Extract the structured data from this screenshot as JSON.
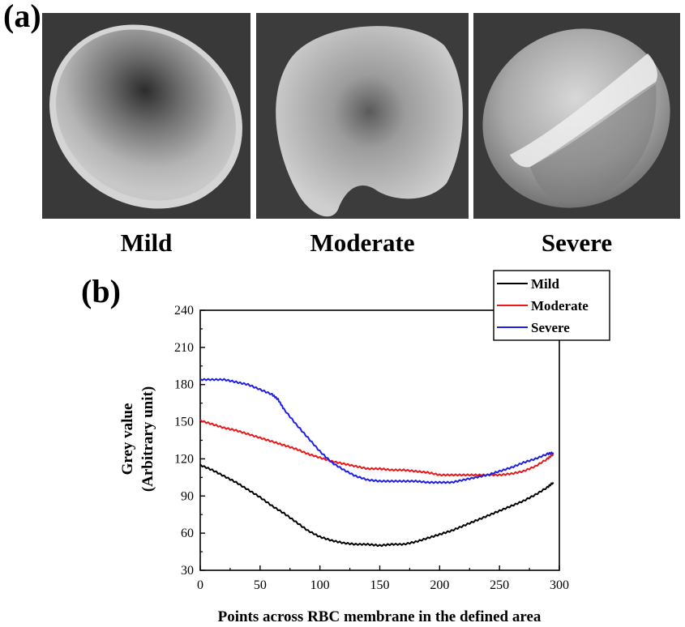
{
  "panel_a": {
    "label": "(a)",
    "images": [
      {
        "caption": "Mild",
        "description": "mild-rbc-sem-image"
      },
      {
        "caption": "Moderate",
        "description": "moderate-rbc-sem-image"
      },
      {
        "caption": "Severe",
        "description": "severe-rbc-sem-image"
      }
    ]
  },
  "panel_b": {
    "label": "(b)"
  },
  "chart_data": {
    "type": "line",
    "title": "",
    "xlabel": "Points across RBC membrane in the defined area",
    "ylabel_line1": "Grey value",
    "ylabel_line2": "(Arbitrary unit)",
    "xlim": [
      0,
      300
    ],
    "ylim": [
      30,
      240
    ],
    "xticks": [
      0,
      50,
      100,
      150,
      200,
      250,
      300
    ],
    "yticks": [
      30,
      60,
      90,
      120,
      150,
      180,
      210,
      240
    ],
    "grid": false,
    "legend_position": "top-right",
    "series": [
      {
        "name": "Mild",
        "color": "#000000",
        "points": [
          [
            0,
            115
          ],
          [
            10,
            111
          ],
          [
            20,
            106
          ],
          [
            30,
            101
          ],
          [
            40,
            95
          ],
          [
            50,
            89
          ],
          [
            60,
            82
          ],
          [
            70,
            76
          ],
          [
            80,
            69
          ],
          [
            90,
            62
          ],
          [
            100,
            57
          ],
          [
            110,
            54
          ],
          [
            120,
            52
          ],
          [
            130,
            51
          ],
          [
            140,
            51
          ],
          [
            150,
            50
          ],
          [
            160,
            51
          ],
          [
            170,
            51
          ],
          [
            180,
            53
          ],
          [
            190,
            56
          ],
          [
            200,
            59
          ],
          [
            210,
            62
          ],
          [
            220,
            66
          ],
          [
            230,
            70
          ],
          [
            240,
            74
          ],
          [
            250,
            78
          ],
          [
            260,
            82
          ],
          [
            270,
            86
          ],
          [
            280,
            91
          ],
          [
            290,
            97
          ],
          [
            295,
            101
          ]
        ]
      },
      {
        "name": "Moderate",
        "color": "#e8191b",
        "points": [
          [
            0,
            151
          ],
          [
            10,
            148
          ],
          [
            20,
            145
          ],
          [
            30,
            143
          ],
          [
            40,
            140
          ],
          [
            50,
            137
          ],
          [
            60,
            134
          ],
          [
            70,
            131
          ],
          [
            80,
            128
          ],
          [
            90,
            124
          ],
          [
            100,
            121
          ],
          [
            110,
            118
          ],
          [
            120,
            116
          ],
          [
            130,
            114
          ],
          [
            140,
            112
          ],
          [
            150,
            112
          ],
          [
            160,
            111
          ],
          [
            170,
            111
          ],
          [
            180,
            110
          ],
          [
            190,
            109
          ],
          [
            200,
            107
          ],
          [
            210,
            107
          ],
          [
            220,
            107
          ],
          [
            230,
            107
          ],
          [
            240,
            107
          ],
          [
            250,
            107
          ],
          [
            260,
            108
          ],
          [
            270,
            110
          ],
          [
            280,
            114
          ],
          [
            290,
            120
          ],
          [
            295,
            124
          ]
        ]
      },
      {
        "name": "Severe",
        "color": "#1e1ee6",
        "points": [
          [
            0,
            184
          ],
          [
            10,
            184
          ],
          [
            20,
            184
          ],
          [
            30,
            182
          ],
          [
            40,
            180
          ],
          [
            50,
            176
          ],
          [
            60,
            172
          ],
          [
            65,
            168
          ],
          [
            70,
            160
          ],
          [
            80,
            148
          ],
          [
            90,
            137
          ],
          [
            100,
            126
          ],
          [
            110,
            117
          ],
          [
            120,
            111
          ],
          [
            130,
            106
          ],
          [
            140,
            103
          ],
          [
            150,
            102
          ],
          [
            160,
            102
          ],
          [
            170,
            102
          ],
          [
            180,
            102
          ],
          [
            190,
            101
          ],
          [
            200,
            101
          ],
          [
            210,
            101
          ],
          [
            220,
            103
          ],
          [
            230,
            105
          ],
          [
            240,
            107
          ],
          [
            250,
            110
          ],
          [
            260,
            113
          ],
          [
            270,
            117
          ],
          [
            280,
            120
          ],
          [
            290,
            124
          ],
          [
            295,
            125
          ]
        ]
      }
    ]
  }
}
